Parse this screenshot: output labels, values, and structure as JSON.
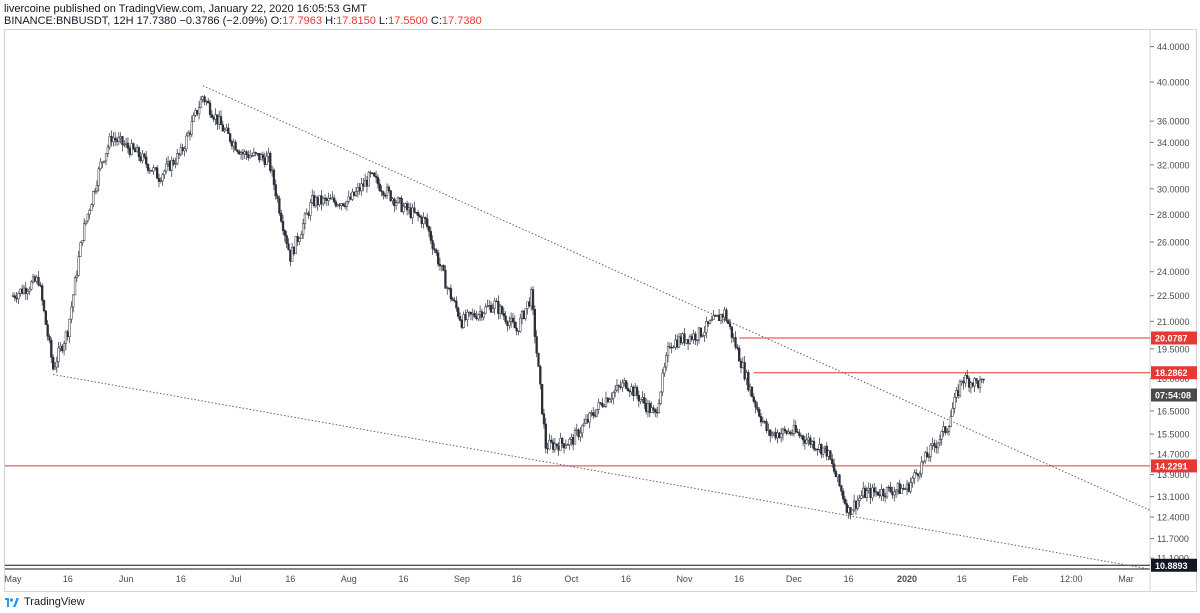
{
  "header": {
    "line1": "livercoine published on TradingView.com, January 22, 2020 16:05:53 GMT",
    "symbol": "BINANCE:BNBUSDT, 12H",
    "last": "17.7380",
    "change": "−0.3786 (−2.09%)",
    "o_label": "O:",
    "o": "17.7963",
    "h_label": "H:",
    "h": "17.8150",
    "l_label": "L:",
    "l": "17.5500",
    "c_label": "C:",
    "c": "17.7380"
  },
  "footer": {
    "brand": "TradingView"
  },
  "chart_data": {
    "type": "candlestick",
    "timeframe": "12H",
    "y_scale": "log",
    "ylim": [
      10.9,
      44.5
    ],
    "y_ticks": [
      "44.0000",
      "40.0000",
      "36.0000",
      "34.0000",
      "32.0000",
      "30.0000",
      "28.0000",
      "26.0000",
      "24.0000",
      "22.5000",
      "21.0000",
      "19.5000",
      "18.0000",
      "16.5000",
      "15.5000",
      "14.7000",
      "13.9000",
      "13.1000",
      "12.4000",
      "11.7000",
      "11.1000"
    ],
    "x_ticks": [
      "May",
      "16",
      "Jun",
      "16",
      "Jul",
      "16",
      "Aug",
      "16",
      "Sep",
      "16",
      "Oct",
      "16",
      "Nov",
      "16",
      "Dec",
      "16",
      "2020",
      "16",
      "Feb",
      "12:00",
      "Mar"
    ],
    "price_labels": [
      {
        "text": "20.0787",
        "value": 20.0787,
        "color": "#e53935"
      },
      {
        "text": "18.2862",
        "value": 18.2862,
        "color": "#e53935"
      },
      {
        "text": "07:54:08",
        "value": 17.738,
        "color": "#4a4a4a"
      },
      {
        "text": "14.2291",
        "value": 14.2291,
        "color": "#e53935"
      },
      {
        "text": "10.8893",
        "value": 10.8893,
        "color": "#131722"
      }
    ],
    "horizontal_lines": [
      {
        "value": 20.0787,
        "from": "Nov 16",
        "color": "#e53935"
      },
      {
        "value": 18.2862,
        "from": "Nov 20",
        "color": "#e53935"
      },
      {
        "value": 14.2291,
        "from": "start",
        "color": "#e53935"
      },
      {
        "value": 10.8893,
        "from": "start",
        "color": "#131722"
      }
    ],
    "trendlines": [
      {
        "from": [
          "Jun 22",
          39.6
        ],
        "to": [
          "Mar 1",
          13.0
        ],
        "style": "dotted"
      },
      {
        "from": [
          "May 12",
          18.2
        ],
        "to": [
          "Mar 1",
          10.9
        ],
        "style": "dotted"
      }
    ],
    "ohlc_approx": [
      {
        "date": "May 1",
        "close": 22.5
      },
      {
        "date": "May 8",
        "close": 23.5
      },
      {
        "date": "May 12",
        "close": 18.5
      },
      {
        "date": "May 16",
        "close": 20.5
      },
      {
        "date": "May 20",
        "close": 26.5
      },
      {
        "date": "May 25",
        "close": 32.0
      },
      {
        "date": "May 28",
        "close": 34.5
      },
      {
        "date": "Jun 4",
        "close": 33.0
      },
      {
        "date": "Jun 10",
        "close": 31.0
      },
      {
        "date": "Jun 16",
        "close": 33.0
      },
      {
        "date": "Jun 22",
        "close": 38.5
      },
      {
        "date": "Jun 28",
        "close": 35.0
      },
      {
        "date": "Jul 3",
        "close": 33.0
      },
      {
        "date": "Jul 10",
        "close": 32.5
      },
      {
        "date": "Jul 16",
        "close": 25.0
      },
      {
        "date": "Jul 22",
        "close": 29.0
      },
      {
        "date": "Aug 1",
        "close": 29.0
      },
      {
        "date": "Aug 7",
        "close": 31.0
      },
      {
        "date": "Aug 16",
        "close": 28.5
      },
      {
        "date": "Aug 22",
        "close": 27.5
      },
      {
        "date": "Aug 28",
        "close": 23.0
      },
      {
        "date": "Sep 1",
        "close": 21.0
      },
      {
        "date": "Sep 10",
        "close": 22.0
      },
      {
        "date": "Sep 16",
        "close": 20.5
      },
      {
        "date": "Sep 20",
        "close": 22.5
      },
      {
        "date": "Sep 24",
        "close": 15.0
      },
      {
        "date": "Oct 1",
        "close": 15.2
      },
      {
        "date": "Oct 10",
        "close": 17.0
      },
      {
        "date": "Oct 16",
        "close": 17.8
      },
      {
        "date": "Oct 24",
        "close": 16.3
      },
      {
        "date": "Oct 28",
        "close": 19.8
      },
      {
        "date": "Nov 5",
        "close": 20.3
      },
      {
        "date": "Nov 12",
        "close": 21.5
      },
      {
        "date": "Nov 20",
        "close": 17.0
      },
      {
        "date": "Nov 24",
        "close": 15.5
      },
      {
        "date": "Dec 1",
        "close": 15.6
      },
      {
        "date": "Dec 10",
        "close": 14.8
      },
      {
        "date": "Dec 16",
        "close": 12.6
      },
      {
        "date": "Dec 20",
        "close": 13.2
      },
      {
        "date": "Dec 26",
        "close": 13.3
      },
      {
        "date": "Jan 1",
        "close": 13.4
      },
      {
        "date": "Jan 6",
        "close": 14.5
      },
      {
        "date": "Jan 12",
        "close": 15.8
      },
      {
        "date": "Jan 16",
        "close": 18.0
      },
      {
        "date": "Jan 22",
        "close": 17.7
      }
    ]
  }
}
